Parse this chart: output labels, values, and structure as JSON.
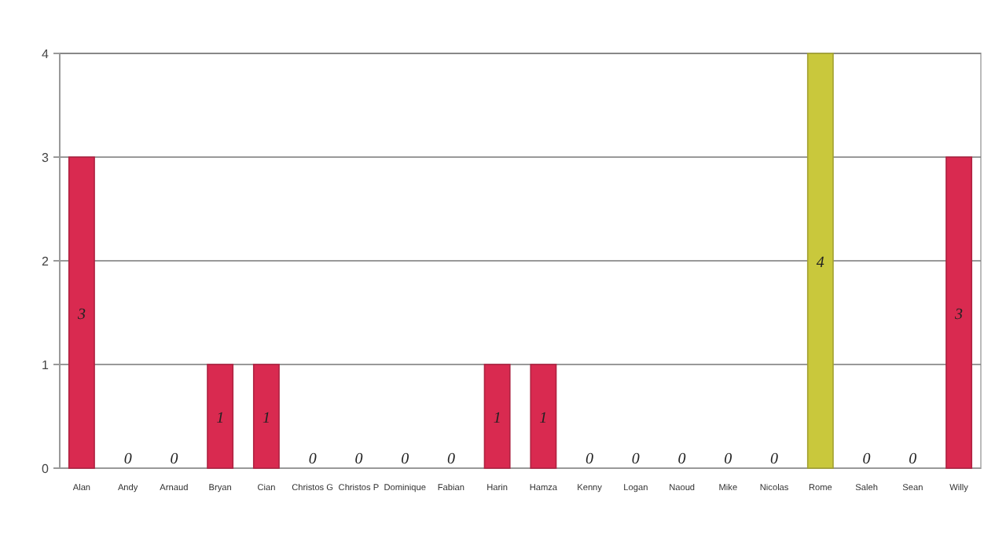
{
  "chart_data": {
    "type": "bar",
    "categories": [
      "Alan",
      "Andy",
      "Arnaud",
      "Bryan",
      "Cian",
      "Christos G",
      "Christos P",
      "Dominique",
      "Fabian",
      "Harin",
      "Hamza",
      "Kenny",
      "Logan",
      "Naoud",
      "Mike",
      "Nicolas",
      "Rome",
      "Saleh",
      "Sean",
      "Willy"
    ],
    "values": [
      3,
      0,
      0,
      1,
      1,
      0,
      0,
      0,
      0,
      1,
      1,
      0,
      0,
      0,
      0,
      0,
      4,
      0,
      0,
      3
    ],
    "colors": [
      "#d92a50",
      "#d92a50",
      "#d92a50",
      "#d92a50",
      "#d92a50",
      "#d92a50",
      "#d92a50",
      "#d92a50",
      "#d92a50",
      "#d92a50",
      "#d92a50",
      "#d92a50",
      "#d92a50",
      "#d92a50",
      "#d92a50",
      "#d92a50",
      "#c9c83c",
      "#d92a50",
      "#d92a50",
      "#d92a50"
    ],
    "ylim": [
      0,
      4
    ],
    "yticks": [
      0,
      1,
      2,
      3,
      4
    ],
    "grid": "y",
    "data_labels": true
  }
}
